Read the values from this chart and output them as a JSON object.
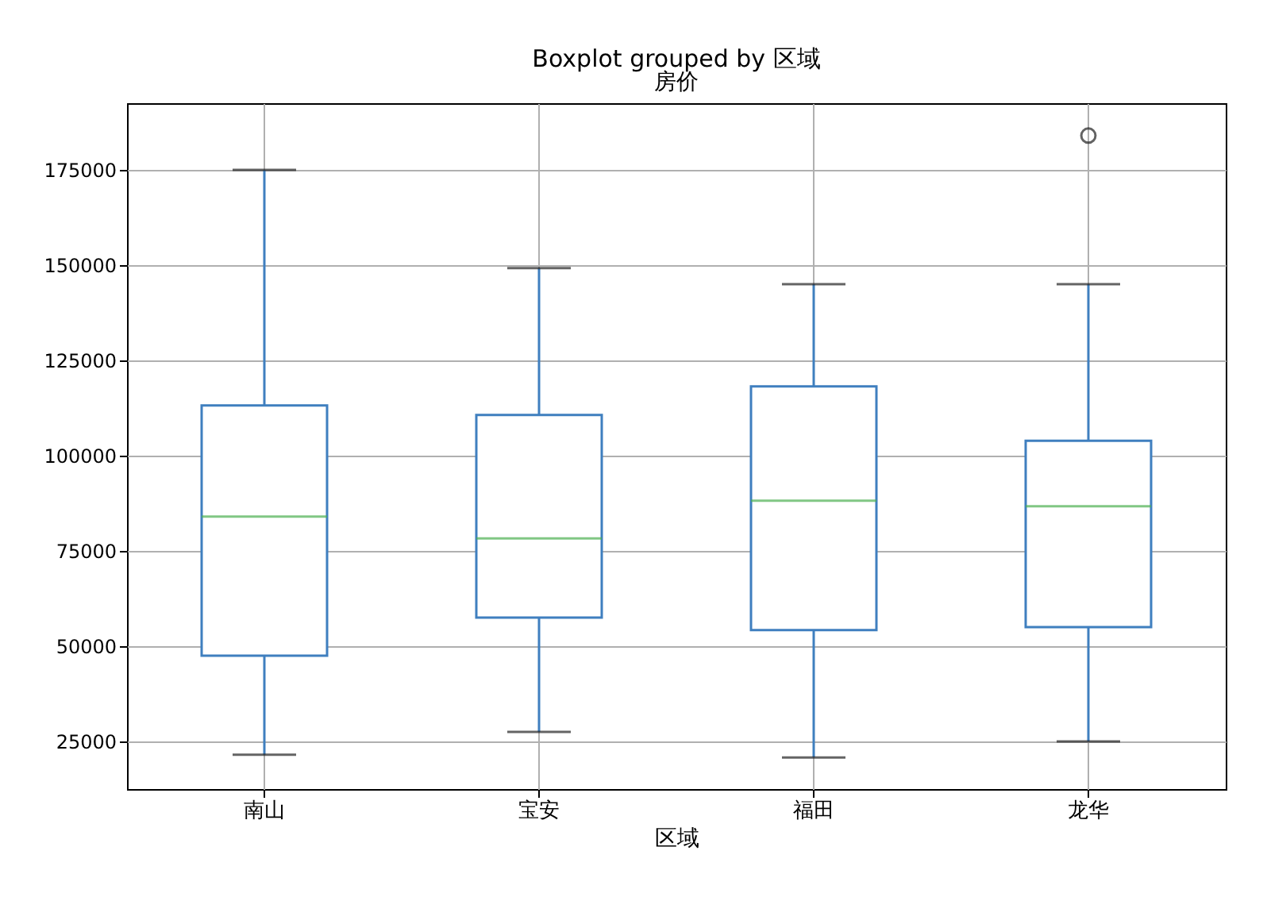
{
  "chart_data": {
    "type": "box",
    "title": "Boxplot grouped by 区域",
    "subtitle": "房价",
    "xlabel": "区域",
    "categories": [
      "南山",
      "宝安",
      "福田",
      "龙华"
    ],
    "boxes": [
      {
        "low": 21500,
        "q1": 47500,
        "median": 84000,
        "q3": 113200,
        "high": 175000
      },
      {
        "low": 27500,
        "q1": 57500,
        "median": 78300,
        "q3": 110700,
        "high": 149200
      },
      {
        "low": 20800,
        "q1": 54200,
        "median": 88200,
        "q3": 118200,
        "high": 145000
      },
      {
        "low": 25000,
        "q1": 55000,
        "median": 86700,
        "q3": 103900,
        "high": 145000,
        "outliers": [
          184000
        ]
      }
    ],
    "ylim": [
      12500,
      192500
    ],
    "yticks": [
      25000,
      50000,
      75000,
      100000,
      125000,
      150000,
      175000
    ],
    "grid": true
  }
}
